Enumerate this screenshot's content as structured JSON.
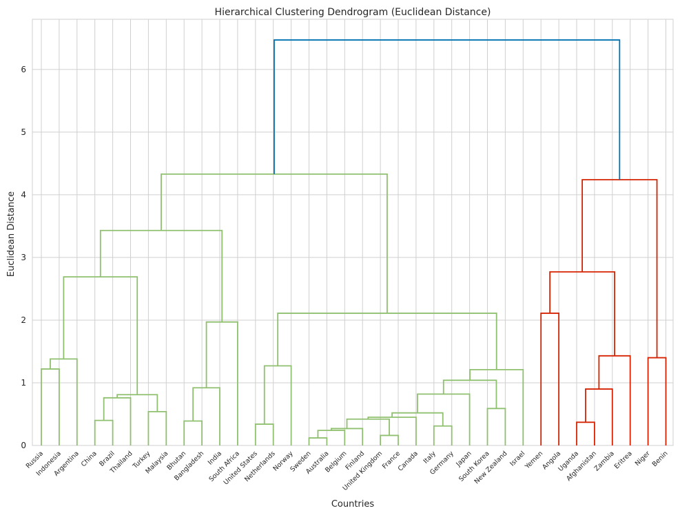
{
  "chart_data": {
    "type": "dendrogram",
    "title": "Hierarchical Clustering Dendrogram (Euclidean Distance)",
    "xlabel": "Countries",
    "ylabel": "Euclidean Distance",
    "ylim": [
      0,
      6.8
    ],
    "yticks": [
      0,
      1,
      2,
      3,
      4,
      5,
      6
    ],
    "grid": true,
    "colors": {
      "cluster_green": "#8fc06f",
      "cluster_red": "#d62200",
      "above_threshold": "#0072b2",
      "grid": "#cfcfcf"
    },
    "leaves": [
      "Russia",
      "Indonesia",
      "Argentina",
      "China",
      "Brazil",
      "Thailand",
      "Turkey",
      "Malaysia",
      "Bhutan",
      "Bangladesh",
      "India",
      "South Africa",
      "United States",
      "Netherlands",
      "Norway",
      "Sweden",
      "Australia",
      "Belgium",
      "Finland",
      "United Kingdom",
      "France",
      "Canada",
      "Italy",
      "Germany",
      "Japan",
      "South Korea",
      "New Zealand",
      "Israel",
      "Yemen",
      "Angola",
      "Uganda",
      "Afghanistan",
      "Zambia",
      "Eritrea",
      "Niger",
      "Benin"
    ],
    "merges": [
      {
        "id": "c0",
        "left": "Russia",
        "right": "Indonesia",
        "height": 1.22,
        "color": "green"
      },
      {
        "id": "c1",
        "left": "c0",
        "right": "Argentina",
        "height": 1.38,
        "color": "green"
      },
      {
        "id": "c2",
        "left": "China",
        "right": "Brazil",
        "height": 0.4,
        "color": "green"
      },
      {
        "id": "c3",
        "left": "c2",
        "right": "Thailand",
        "height": 0.76,
        "color": "green"
      },
      {
        "id": "c4",
        "left": "Turkey",
        "right": "Malaysia",
        "height": 0.54,
        "color": "green"
      },
      {
        "id": "c5",
        "left": "c3",
        "right": "c4",
        "height": 0.81,
        "color": "green"
      },
      {
        "id": "c6",
        "left": "c1",
        "right": "c5",
        "height": 2.69,
        "color": "green"
      },
      {
        "id": "c7",
        "left": "Bhutan",
        "right": "Bangladesh",
        "height": 0.39,
        "color": "green"
      },
      {
        "id": "c8",
        "left": "c7",
        "right": "India",
        "height": 0.92,
        "color": "green"
      },
      {
        "id": "c9",
        "left": "c8",
        "right": "South Africa",
        "height": 1.97,
        "color": "green"
      },
      {
        "id": "c10",
        "left": "c6",
        "right": "c9",
        "height": 3.43,
        "color": "green"
      },
      {
        "id": "c11",
        "left": "United States",
        "right": "Netherlands",
        "height": 0.34,
        "color": "green"
      },
      {
        "id": "c12",
        "left": "c11",
        "right": "Norway",
        "height": 1.27,
        "color": "green"
      },
      {
        "id": "c13",
        "left": "Sweden",
        "right": "Australia",
        "height": 0.12,
        "color": "green"
      },
      {
        "id": "c14",
        "left": "c13",
        "right": "Belgium",
        "height": 0.24,
        "color": "green"
      },
      {
        "id": "c15",
        "left": "c14",
        "right": "Finland",
        "height": 0.27,
        "color": "green"
      },
      {
        "id": "c16",
        "left": "United Kingdom",
        "right": "France",
        "height": 0.16,
        "color": "green"
      },
      {
        "id": "c17",
        "left": "c15",
        "right": "c16",
        "height": 0.42,
        "color": "green"
      },
      {
        "id": "c18",
        "left": "c17",
        "right": "Canada",
        "height": 0.45,
        "color": "green"
      },
      {
        "id": "c19",
        "left": "Italy",
        "right": "Germany",
        "height": 0.31,
        "color": "green"
      },
      {
        "id": "c20",
        "left": "c18",
        "right": "c19",
        "height": 0.52,
        "color": "green"
      },
      {
        "id": "c21",
        "left": "c20",
        "right": "Japan",
        "height": 0.82,
        "color": "green"
      },
      {
        "id": "c22",
        "left": "South Korea",
        "right": "New Zealand",
        "height": 0.59,
        "color": "green"
      },
      {
        "id": "c23",
        "left": "c21",
        "right": "c22",
        "height": 1.04,
        "color": "green"
      },
      {
        "id": "c24",
        "left": "c23",
        "right": "Israel",
        "height": 1.21,
        "color": "green"
      },
      {
        "id": "c25",
        "left": "c12",
        "right": "c24",
        "height": 2.11,
        "color": "green"
      },
      {
        "id": "c26",
        "left": "c10",
        "right": "c25",
        "height": 4.33,
        "color": "green"
      },
      {
        "id": "c27",
        "left": "Yemen",
        "right": "Angola",
        "height": 2.11,
        "color": "red"
      },
      {
        "id": "c28",
        "left": "Uganda",
        "right": "Afghanistan",
        "height": 0.37,
        "color": "red"
      },
      {
        "id": "c29",
        "left": "c28",
        "right": "Zambia",
        "height": 0.9,
        "color": "red"
      },
      {
        "id": "c30",
        "left": "c29",
        "right": "Eritrea",
        "height": 1.43,
        "color": "red"
      },
      {
        "id": "c31",
        "left": "c27",
        "right": "c30",
        "height": 2.77,
        "color": "red"
      },
      {
        "id": "c32",
        "left": "Niger",
        "right": "Benin",
        "height": 1.4,
        "color": "red"
      },
      {
        "id": "c33",
        "left": "c31",
        "right": "c32",
        "height": 4.24,
        "color": "red"
      },
      {
        "id": "c34",
        "left": "c26",
        "right": "c33",
        "height": 6.47,
        "color": "blue"
      }
    ]
  }
}
